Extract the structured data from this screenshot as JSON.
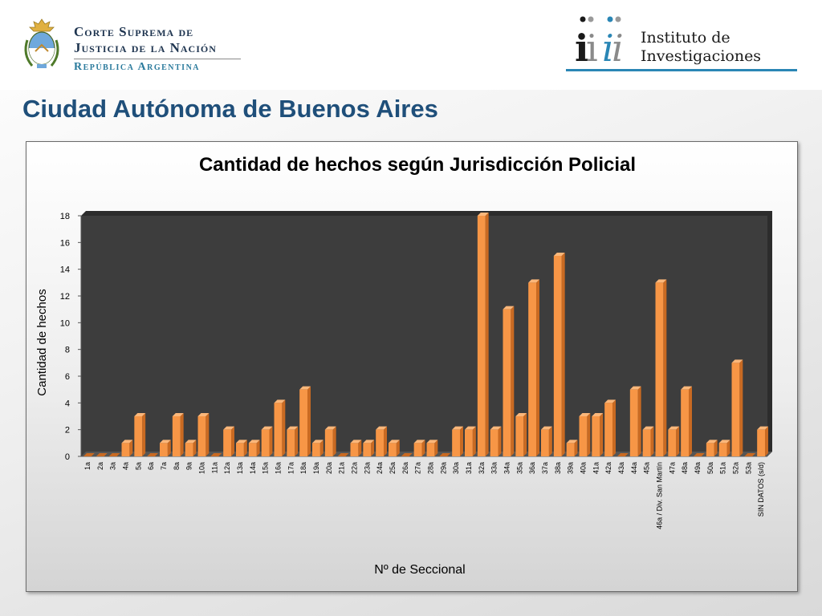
{
  "header": {
    "court_line1": "Corte Suprema de",
    "court_line2": "Justicia de la Nación",
    "court_line3": "República Argentina",
    "institute_line1": "Instituto de",
    "institute_line2": "Investigaciones"
  },
  "page": {
    "title": "Ciudad Autónoma de Buenos Aires"
  },
  "colors": {
    "bar": "#f79646",
    "bar_top": "#fbb77a",
    "bar_side": "#c96a22",
    "plot_bg": "#3d3d3d",
    "title_blue": "#1f4f7a",
    "accent_blue": "#2a86b5"
  },
  "chart_data": {
    "type": "bar",
    "title": "Cantidad de hechos según Jurisdicción Policial",
    "xlabel": "Nº de Seccional",
    "ylabel": "Cantidad de hechos",
    "ylim": [
      0,
      18
    ],
    "yticks": [
      0,
      2,
      4,
      6,
      8,
      10,
      12,
      14,
      16,
      18
    ],
    "grid": false,
    "legend": "none",
    "categories": [
      "1a",
      "2a",
      "3a",
      "4a",
      "5a",
      "6a",
      "7a",
      "8a",
      "9a",
      "10a",
      "11a",
      "12a",
      "13a",
      "14a",
      "15a",
      "16a",
      "17a",
      "18a",
      "19a",
      "20a",
      "21a",
      "22a",
      "23a",
      "24a",
      "25a",
      "26a",
      "27a",
      "28a",
      "29a",
      "30a",
      "31a",
      "32a",
      "33a",
      "34a",
      "35a",
      "36a",
      "37a",
      "38a",
      "39a",
      "40a",
      "41a",
      "42a",
      "43a",
      "44a",
      "45a",
      "46a / Div. San Martín",
      "47a",
      "48a",
      "49a",
      "50a",
      "51a",
      "52a",
      "53a",
      "SIN DATOS (s/d)"
    ],
    "values": [
      0,
      0,
      0,
      1,
      3,
      0,
      1,
      3,
      1,
      3,
      0,
      2,
      1,
      1,
      2,
      4,
      2,
      5,
      1,
      2,
      0,
      1,
      1,
      2,
      1,
      0,
      1,
      1,
      0,
      2,
      2,
      18,
      2,
      11,
      3,
      13,
      2,
      15,
      1,
      3,
      3,
      4,
      0,
      5,
      2,
      13,
      2,
      5,
      0,
      1,
      1,
      7,
      0,
      2
    ]
  }
}
